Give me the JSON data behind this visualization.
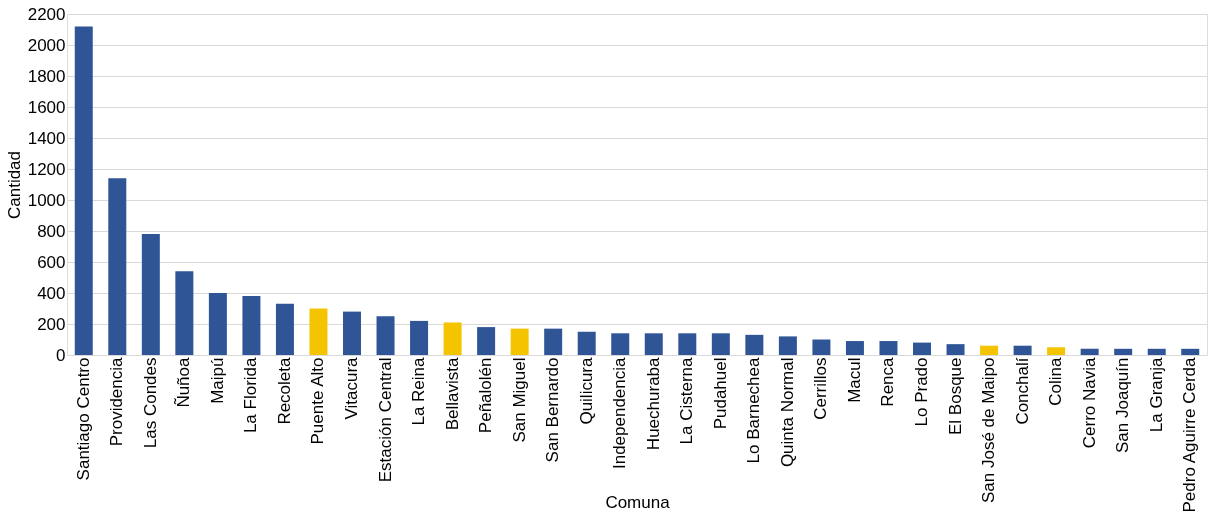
{
  "chart_data": {
    "type": "bar",
    "xlabel": "Comuna",
    "ylabel": "Cantidad",
    "categories": [
      "Santiago Centro",
      "Providencia",
      "Las Condes",
      "Ñuñoa",
      "Maipú",
      "La Florida",
      "Recoleta",
      "Puente Alto",
      "Vitacura",
      "Estación Central",
      "La Reina",
      "Bellavista",
      "Peñalolén",
      "San Miguel",
      "San Bernardo",
      "Quilicura",
      "Independencia",
      "Huechuraba",
      "La Cisterna",
      "Pudahuel",
      "Lo Barnechea",
      "Quinta Normal",
      "Cerrillos",
      "Macul",
      "Renca",
      "Lo Prado",
      "El Bosque",
      "San José de Maipo",
      "Conchalí",
      "Colina",
      "Cerro Navia",
      "San Joaquín",
      "La Granja",
      "Pedro Aguirre Cerda"
    ],
    "values": [
      2120,
      1140,
      780,
      540,
      400,
      380,
      330,
      300,
      280,
      250,
      220,
      210,
      180,
      170,
      170,
      150,
      140,
      140,
      140,
      140,
      130,
      120,
      100,
      90,
      90,
      80,
      70,
      60,
      60,
      50,
      40,
      40,
      40,
      40
    ],
    "colors": [
      "#2f5597",
      "#2f5597",
      "#2f5597",
      "#2f5597",
      "#2f5597",
      "#2f5597",
      "#2f5597",
      "#f5c400",
      "#2f5597",
      "#2f5597",
      "#2f5597",
      "#f5c400",
      "#2f5597",
      "#f5c400",
      "#2f5597",
      "#2f5597",
      "#2f5597",
      "#2f5597",
      "#2f5597",
      "#2f5597",
      "#2f5597",
      "#2f5597",
      "#2f5597",
      "#2f5597",
      "#2f5597",
      "#2f5597",
      "#2f5597",
      "#f5c400",
      "#2f5597",
      "#f5c400",
      "#2f5597",
      "#2f5597",
      "#2f5597",
      "#2f5597"
    ],
    "ylim": [
      0,
      2200
    ],
    "yticks": [
      0,
      200,
      400,
      600,
      800,
      1000,
      1200,
      1400,
      1600,
      1800,
      2000,
      2200
    ],
    "grid": "y",
    "legend": false
  }
}
